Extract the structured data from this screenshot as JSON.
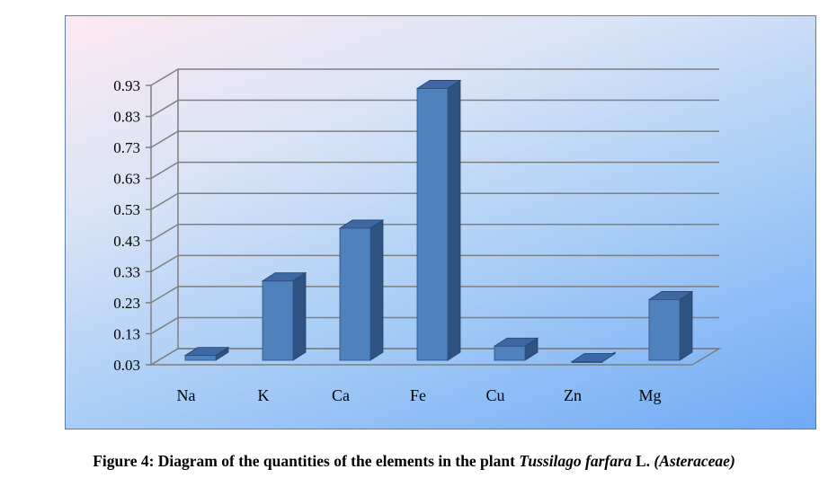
{
  "chart_data": {
    "type": "bar",
    "style": "3d-column",
    "categories": [
      "Na",
      "K",
      "Ca",
      "Fe",
      "Cu",
      "Zn",
      "Mg"
    ],
    "values": [
      0.06,
      0.3,
      0.47,
      0.92,
      0.09,
      0.04,
      0.24
    ],
    "yticks": [
      "0.03",
      "0.13",
      "0.23",
      "0.33",
      "0.43",
      "0.53",
      "0.63",
      "0.73",
      "0.83",
      "0.93"
    ],
    "ylim": [
      0.03,
      0.93
    ],
    "grid": true,
    "bar_color": "#4f81bd",
    "title": "",
    "xlabel": "",
    "ylabel": ""
  },
  "caption": {
    "prefix": "Figure 4: Diagram of the quantities of the elements in the plant ",
    "species": "Tussilago farfara",
    "author": " L. ",
    "family": "(Asteraceae)"
  }
}
